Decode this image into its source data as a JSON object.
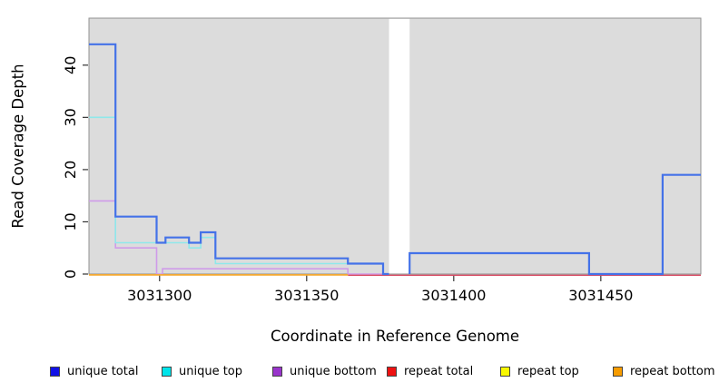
{
  "chart_data": {
    "type": "line",
    "subtype": "step-coverage",
    "xlabel": "Coordinate in Reference Genome",
    "ylabel": "Read Coverage Depth",
    "xlim": [
      3031276,
      3031484
    ],
    "ylim": [
      0,
      49
    ],
    "x_ticks": [
      3031300,
      3031350,
      3031400,
      3031450
    ],
    "y_ticks": [
      0,
      10,
      20,
      30,
      40
    ],
    "grid": false,
    "legend_position": "bottom",
    "plot_bg_color": "#dcdcdc",
    "border_color": "#919191",
    "tick_color": "#333333",
    "masked_region": {
      "x_start": 3031378,
      "x_end": 3031385,
      "color": "#ffffff"
    },
    "series": [
      {
        "name": "unique total",
        "legend_color": "#1111e6",
        "line_color": "#4472e8",
        "line_width": 2.2,
        "dy": 0,
        "segments": [
          [
            [
              3031276,
              44
            ],
            [
              3031285,
              44
            ],
            [
              3031285,
              11
            ],
            [
              3031299,
              11
            ],
            [
              3031299,
              6
            ],
            [
              3031302,
              6
            ],
            [
              3031302,
              7
            ],
            [
              3031310,
              7
            ],
            [
              3031310,
              6
            ],
            [
              3031314,
              6
            ],
            [
              3031314,
              8
            ],
            [
              3031319,
              8
            ],
            [
              3031319,
              3
            ],
            [
              3031364,
              3
            ],
            [
              3031364,
              2
            ],
            [
              3031376,
              2
            ],
            [
              3031376,
              0
            ],
            [
              3031378,
              0
            ]
          ],
          [
            [
              3031385,
              0
            ],
            [
              3031385,
              4
            ],
            [
              3031446,
              4
            ],
            [
              3031446,
              0
            ],
            [
              3031471,
              0
            ],
            [
              3031471,
              19
            ],
            [
              3031484,
              19
            ]
          ]
        ]
      },
      {
        "name": "unique top",
        "legend_color": "#00e4ea",
        "line_color": "#8fe8ea",
        "line_width": 1.6,
        "dy": 0,
        "segments": [
          [
            [
              3031276,
              30
            ],
            [
              3031285,
              30
            ],
            [
              3031285,
              6
            ],
            [
              3031310,
              6
            ],
            [
              3031310,
              5
            ],
            [
              3031314,
              5
            ],
            [
              3031314,
              7
            ],
            [
              3031319,
              7
            ],
            [
              3031319,
              2
            ],
            [
              3031376,
              2
            ],
            [
              3031376,
              0
            ],
            [
              3031378,
              0
            ]
          ]
        ]
      },
      {
        "name": "unique bottom",
        "legend_color": "#9934cc",
        "line_color": "#cf9be9",
        "line_width": 1.6,
        "dy": 0,
        "segments": [
          [
            [
              3031276,
              14
            ],
            [
              3031285,
              14
            ],
            [
              3031285,
              5
            ],
            [
              3031299,
              5
            ],
            [
              3031299,
              0
            ],
            [
              3031301,
              0
            ],
            [
              3031301,
              1
            ],
            [
              3031364,
              1
            ],
            [
              3031364,
              0
            ],
            [
              3031378,
              0
            ]
          ]
        ]
      },
      {
        "name": "repeat total",
        "legend_color": "#ee1111",
        "line_color": "#d84861",
        "line_width": 1.4,
        "dy": 1.3,
        "segments": [
          [
            [
              3031364,
              0
            ],
            [
              3031484,
              0
            ]
          ]
        ]
      },
      {
        "name": "repeat top",
        "legend_color": "#f8f800",
        "line_color": "#f5e75a",
        "line_width": 1.4,
        "dy": 0.9,
        "segments": [
          [
            [
              3031276,
              0
            ],
            [
              3031364,
              0
            ]
          ]
        ]
      },
      {
        "name": "repeat bottom",
        "legend_color": "#f79c00",
        "line_color": "#f7a52e",
        "line_width": 1.6,
        "dy": 0.9,
        "segments": [
          [
            [
              3031276,
              0
            ],
            [
              3031364,
              0
            ]
          ]
        ]
      }
    ],
    "draw_order": [
      2,
      3,
      4,
      5,
      1,
      0
    ]
  }
}
